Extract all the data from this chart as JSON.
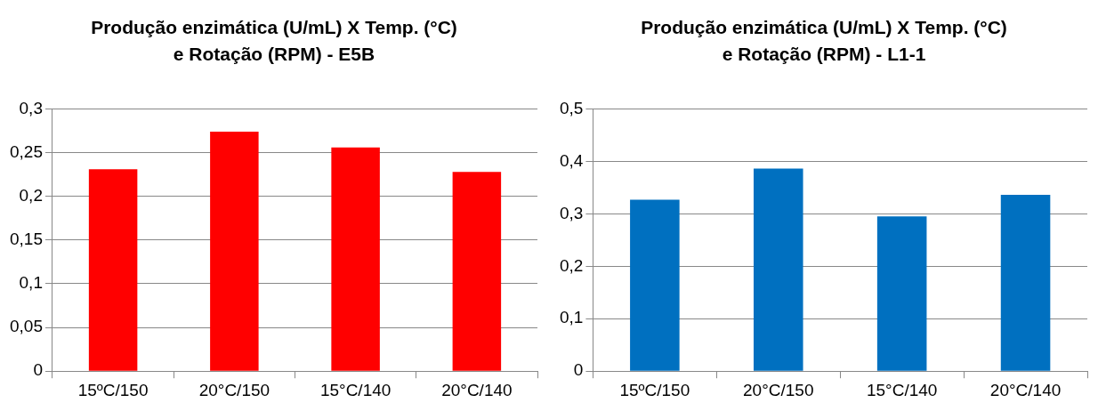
{
  "chart_data": [
    {
      "type": "bar",
      "title": "Produção enzimática (U/mL) X Temp. (°C) e Rotação (RPM) - E5B",
      "categories": [
        "15ºC/150",
        "20°C/150",
        "15°C/140",
        "20°C/140"
      ],
      "values": [
        0.231,
        0.274,
        0.256,
        0.228
      ],
      "color": "#ff0000",
      "ylim": [
        0,
        0.3
      ],
      "yticks": [
        {
          "value": 0,
          "label": "0"
        },
        {
          "value": 0.05,
          "label": "0,05"
        },
        {
          "value": 0.1,
          "label": "0,1"
        },
        {
          "value": 0.15,
          "label": "0,15"
        },
        {
          "value": 0.2,
          "label": "0,2"
        },
        {
          "value": 0.25,
          "label": "0,25"
        },
        {
          "value": 0.3,
          "label": "0,3"
        }
      ],
      "grid": "y"
    },
    {
      "type": "bar",
      "title": "Produção enzimática (U/mL) X Temp. (°C) e Rotação (RPM) - L1-1",
      "categories": [
        "15ºC/150",
        "20°C/150",
        "15°C/140",
        "20°C/140"
      ],
      "values": [
        0.327,
        0.386,
        0.295,
        0.336
      ],
      "color": "#0070c0",
      "ylim": [
        0,
        0.5
      ],
      "yticks": [
        {
          "value": 0,
          "label": "0"
        },
        {
          "value": 0.1,
          "label": "0,1"
        },
        {
          "value": 0.2,
          "label": "0,2"
        },
        {
          "value": 0.3,
          "label": "0,3"
        },
        {
          "value": 0.4,
          "label": "0,4"
        },
        {
          "value": 0.5,
          "label": "0,5"
        }
      ],
      "grid": "y"
    }
  ]
}
